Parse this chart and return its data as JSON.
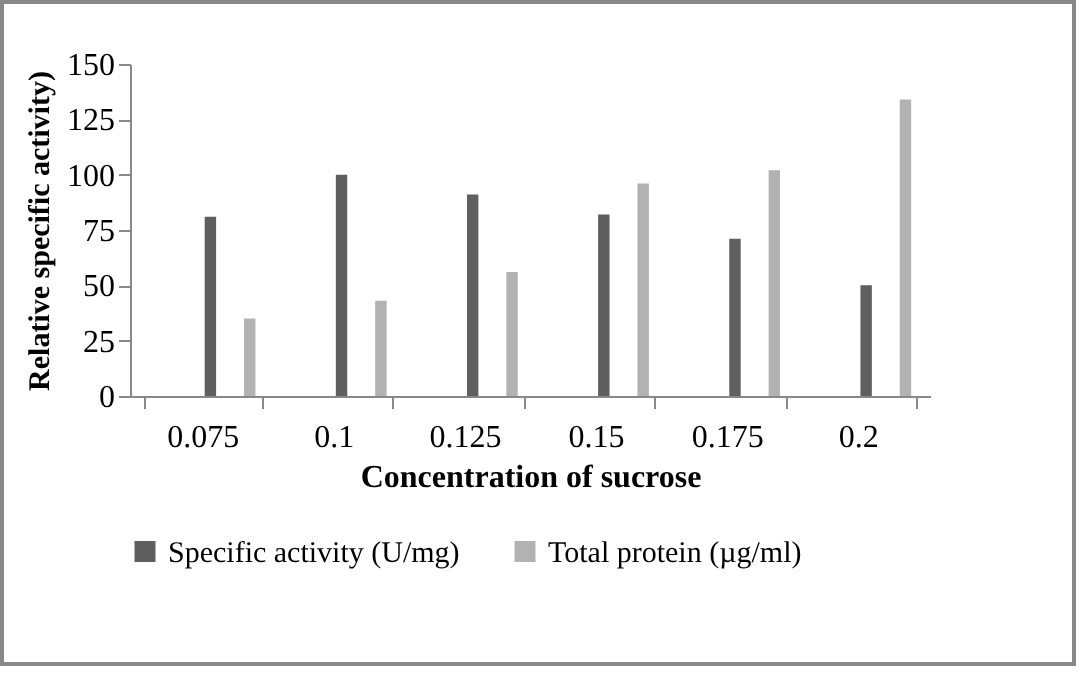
{
  "chart_data": {
    "type": "bar",
    "xlabel": "Concentration of sucrose",
    "ylabel": "Relative specific activity)",
    "categories": [
      "0.075",
      "0.1",
      "0.125",
      "0.15",
      "0.175",
      "0.2"
    ],
    "series": [
      {
        "name": "Specific activity (U/mg)",
        "color": "#5f5f5f",
        "values": [
          81,
          100,
          91,
          82,
          71,
          50
        ]
      },
      {
        "name": "Total protein (µg/ml)",
        "color": "#b2b2b2",
        "values": [
          35,
          43,
          56,
          96,
          102,
          134
        ]
      }
    ],
    "ylim": [
      0,
      150
    ],
    "yticks": [
      0,
      25,
      50,
      75,
      100,
      125,
      150
    ],
    "grid": false,
    "legend": "bottom"
  }
}
